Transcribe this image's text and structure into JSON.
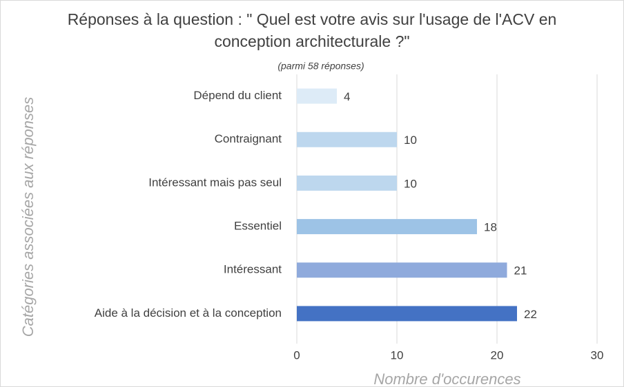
{
  "chart_data": {
    "type": "barh",
    "title": "Réponses à la question : \" Quel est votre avis sur l'usage de l'ACV en conception architecturale ?\"",
    "subtitle": "(parmi 58 réponses)",
    "x_label": "Nombre d'occurences",
    "y_label": "Catégories associées aux réponses",
    "categories": [
      "Dépend du client",
      "Contraignant",
      "Intéressant mais pas seul",
      "Essentiel",
      "Intéressant",
      "Aide à la décision et à la conception"
    ],
    "values": [
      4,
      10,
      10,
      18,
      21,
      22
    ],
    "colors": [
      "#ddebf7",
      "#bdd7ee",
      "#bdd7ee",
      "#9dc3e6",
      "#8faadc",
      "#4472c4"
    ],
    "xlim": [
      0,
      30
    ],
    "xticks": [
      0,
      10,
      20,
      30
    ],
    "grid": true
  }
}
